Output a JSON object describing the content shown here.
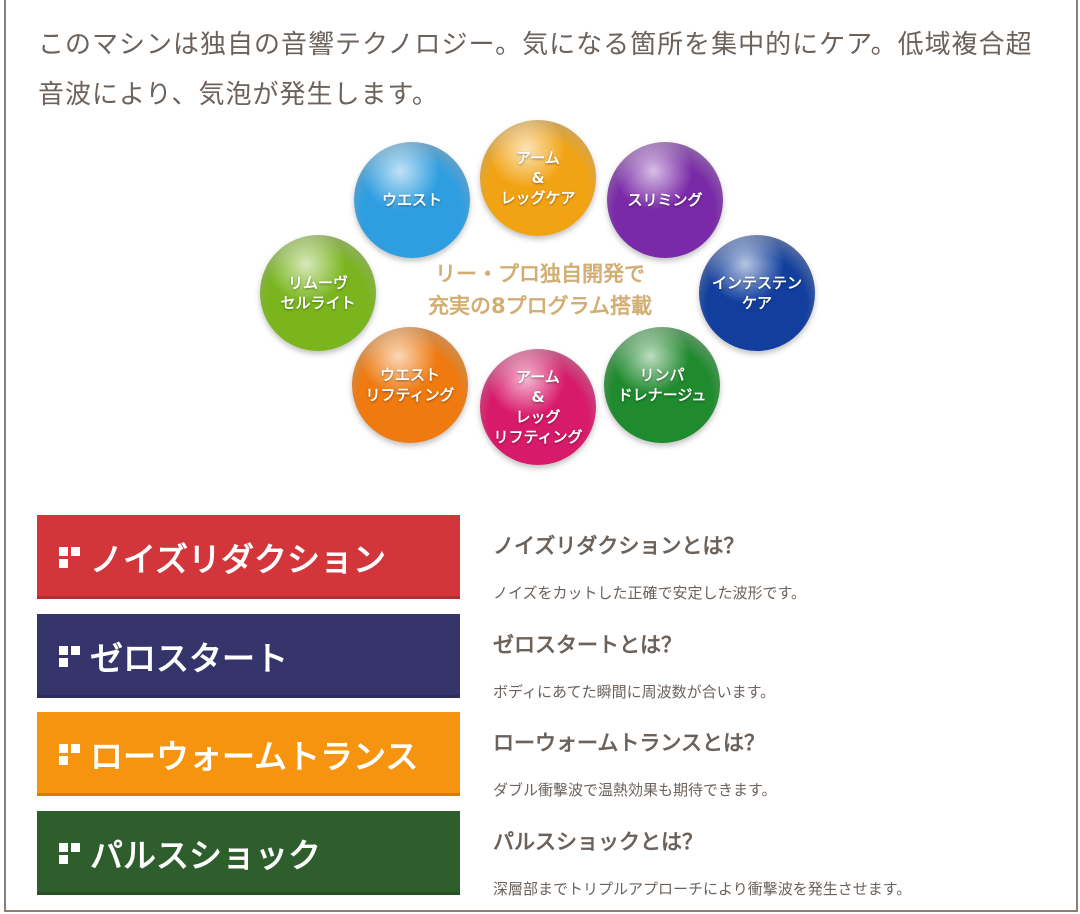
{
  "intro_text": "このマシンは独自の音響テクノロジー。気になる箇所を集中的にケア。低域複合超音波により、気泡が発生します。",
  "programs_graphic": {
    "center_line1": "リー・プロ独自開発で",
    "center_line2": "充実の8プログラム搭載",
    "balls": [
      {
        "label": "ウエスト",
        "color": "#2f9ee0"
      },
      {
        "label": "アーム\n&\nレッグケア",
        "color": "#f2a313"
      },
      {
        "label": "スリミング",
        "color": "#7a2aa8"
      },
      {
        "label": "インテステン\nケア",
        "color": "#123f9e"
      },
      {
        "label": "リンパ\nドレナージュ",
        "color": "#1f8a2e"
      },
      {
        "label": "アーム\n&\nレッグ\nリフティング",
        "color": "#d81a6a"
      },
      {
        "label": "ウエスト\nリフティング",
        "color": "#ee7a10"
      },
      {
        "label": "リムーヴ\nセルライト",
        "color": "#7ab51e"
      }
    ]
  },
  "features": [
    {
      "banner": "ノイズリダクション",
      "color": "#d2363a",
      "title": "ノイズリダクションとは？",
      "desc": "ノイズをカットした正確で安定した波形です。"
    },
    {
      "banner": "ゼロスタート",
      "color": "#36356b",
      "title": "ゼロスタートとは？",
      "desc": "ボディにあてた瞬間に周波数が合います。"
    },
    {
      "banner": "ローウォームトランス",
      "color": "#f7940f",
      "title": "ローウォームトランスとは？",
      "desc": "ダブル衝撃波で温熱効果も期待できます。"
    },
    {
      "banner": "パルスショック",
      "color": "#2e5e2c",
      "title": "パルスショックとは？",
      "desc": "深層部までトリプルアプローチにより衝撃波を発生させます。"
    }
  ]
}
